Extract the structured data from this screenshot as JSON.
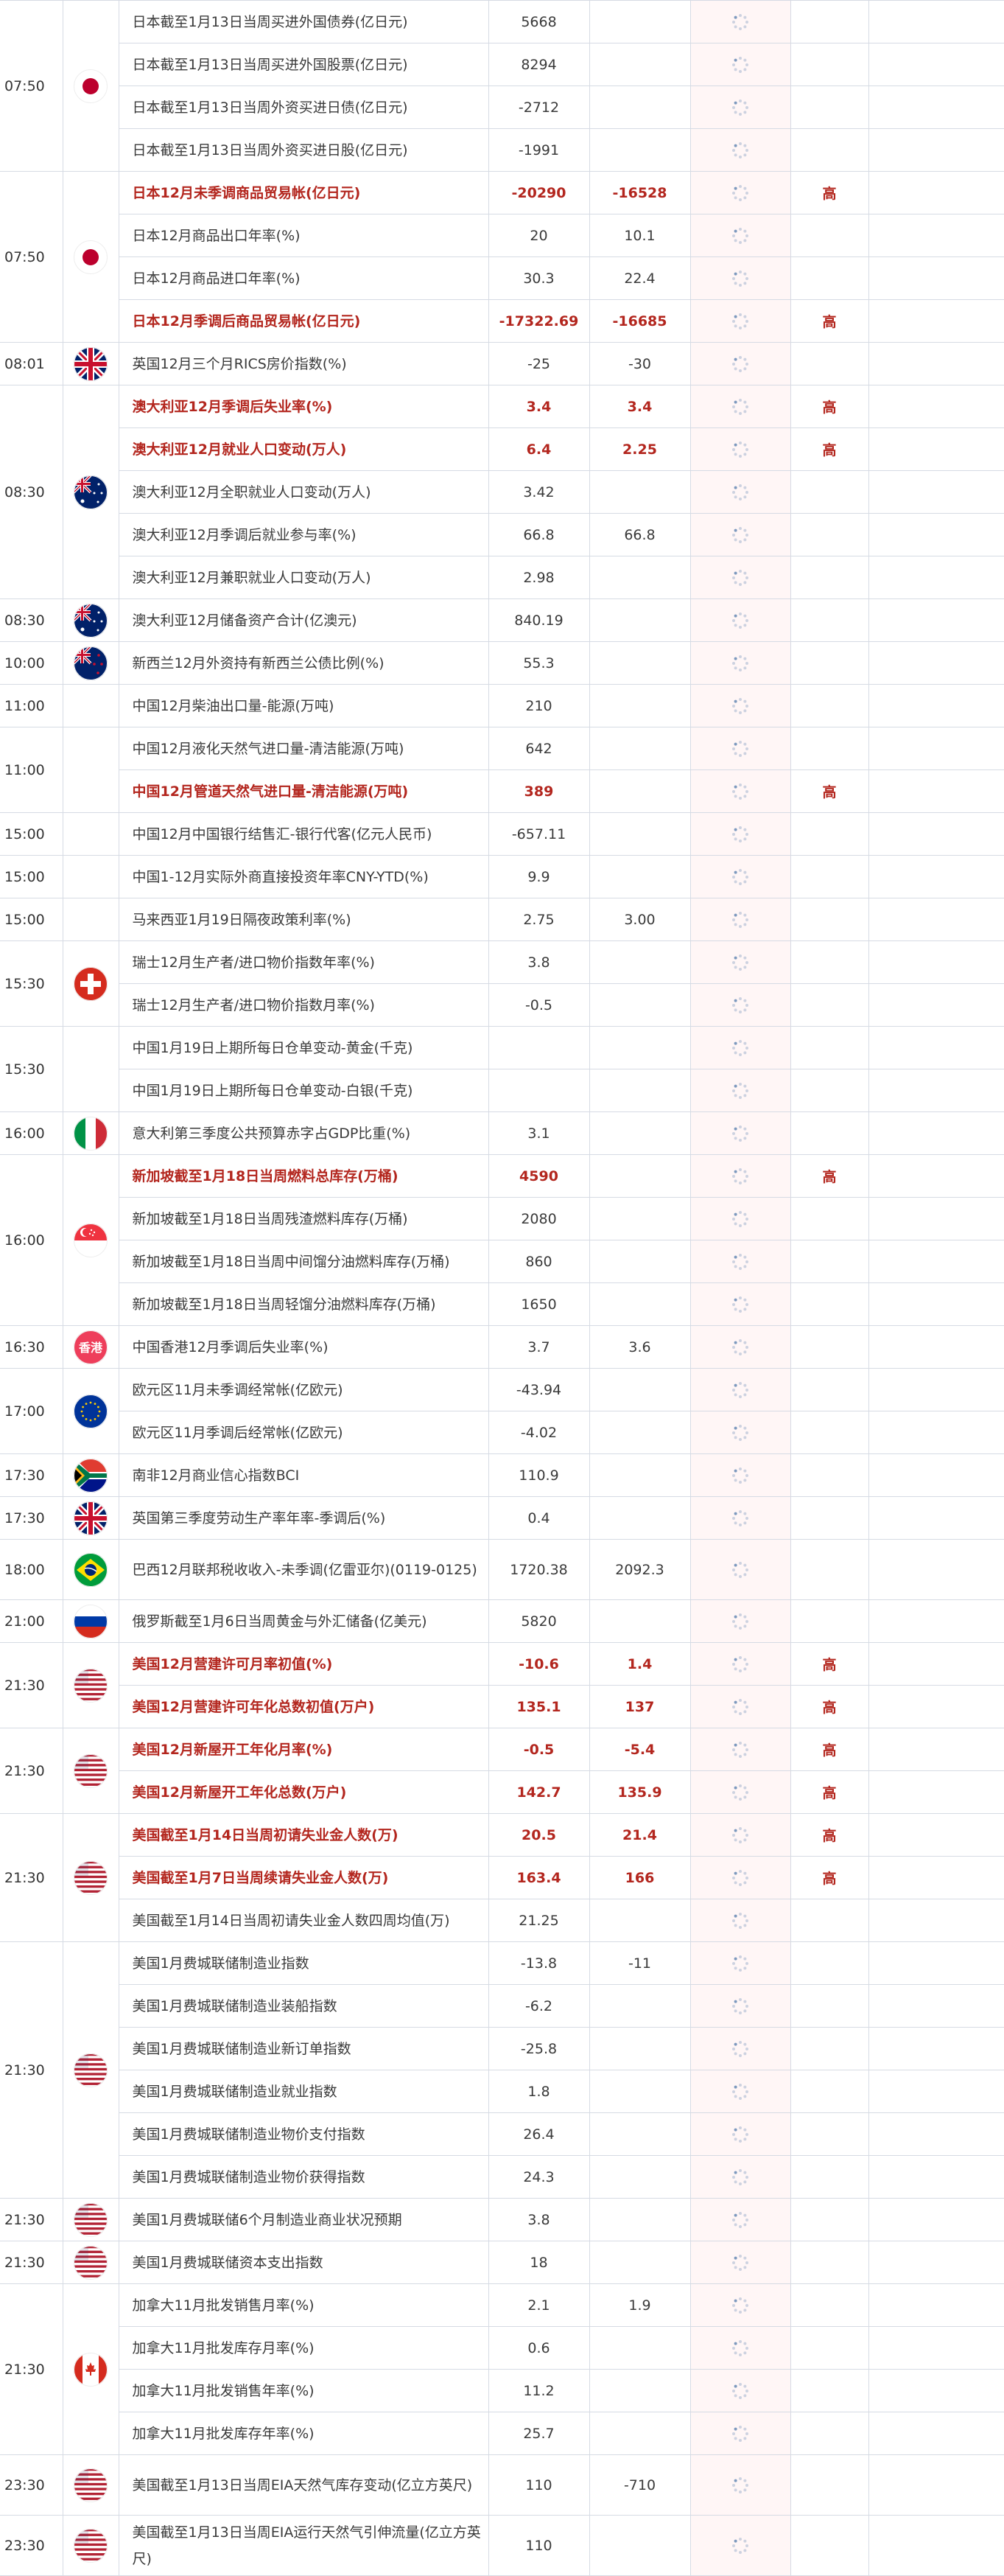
{
  "accent_color": "#b3261e",
  "loading_icon": "spinner-icon",
  "groups": [
    {
      "time": "07:50",
      "flag": "jp",
      "rows": [
        {
          "event": "日本截至1月13日当周买进外国债券(亿日元)",
          "actual": "5668",
          "previous": "",
          "importance": ""
        },
        {
          "event": "日本截至1月13日当周买进外国股票(亿日元)",
          "actual": "8294",
          "previous": "",
          "importance": ""
        },
        {
          "event": "日本截至1月13日当周外资买进日债(亿日元)",
          "actual": "-2712",
          "previous": "",
          "importance": ""
        },
        {
          "event": "日本截至1月13日当周外资买进日股(亿日元)",
          "actual": "-1991",
          "previous": "",
          "importance": ""
        }
      ]
    },
    {
      "time": "07:50",
      "flag": "jp",
      "rows": [
        {
          "event": "日本12月未季调商品贸易帐(亿日元)",
          "actual": "-20290",
          "previous": "-16528",
          "importance": "高"
        },
        {
          "event": "日本12月商品出口年率(%)",
          "actual": "20",
          "previous": "10.1",
          "importance": ""
        },
        {
          "event": "日本12月商品进口年率(%)",
          "actual": "30.3",
          "previous": "22.4",
          "importance": ""
        },
        {
          "event": "日本12月季调后商品贸易帐(亿日元)",
          "actual": "-17322.69",
          "previous": "-16685",
          "importance": "高"
        }
      ]
    },
    {
      "time": "08:01",
      "flag": "uk",
      "rows": [
        {
          "event": "英国12月三个月RICS房价指数(%)",
          "actual": "-25",
          "previous": "-30",
          "importance": ""
        }
      ]
    },
    {
      "time": "08:30",
      "flag": "au",
      "rows": [
        {
          "event": "澳大利亚12月季调后失业率(%)",
          "actual": "3.4",
          "previous": "3.4",
          "importance": "高"
        },
        {
          "event": "澳大利亚12月就业人口变动(万人)",
          "actual": "6.4",
          "previous": "2.25",
          "importance": "高"
        },
        {
          "event": "澳大利亚12月全职就业人口变动(万人)",
          "actual": "3.42",
          "previous": "",
          "importance": ""
        },
        {
          "event": "澳大利亚12月季调后就业参与率(%)",
          "actual": "66.8",
          "previous": "66.8",
          "importance": ""
        },
        {
          "event": "澳大利亚12月兼职就业人口变动(万人)",
          "actual": "2.98",
          "previous": "",
          "importance": ""
        }
      ]
    },
    {
      "time": "08:30",
      "flag": "au",
      "rows": [
        {
          "event": "澳大利亚12月储备资产合计(亿澳元)",
          "actual": "840.19",
          "previous": "",
          "importance": ""
        }
      ]
    },
    {
      "time": "10:00",
      "flag": "nz",
      "rows": [
        {
          "event": "新西兰12月外资持有新西兰公债比例(%)",
          "actual": "55.3",
          "previous": "",
          "importance": ""
        }
      ]
    },
    {
      "time": "11:00",
      "flag": "",
      "rows": [
        {
          "event": "中国12月柴油出口量-能源(万吨)",
          "actual": "210",
          "previous": "",
          "importance": ""
        }
      ]
    },
    {
      "time": "11:00",
      "flag": "",
      "rows": [
        {
          "event": "中国12月液化天然气进口量-清洁能源(万吨)",
          "actual": "642",
          "previous": "",
          "importance": ""
        },
        {
          "event": "中国12月管道天然气进口量-清洁能源(万吨)",
          "actual": "389",
          "previous": "",
          "importance": "高"
        }
      ]
    },
    {
      "time": "15:00",
      "flag": "",
      "rows": [
        {
          "event": "中国12月中国银行结售汇-银行代客(亿元人民币)",
          "actual": "-657.11",
          "previous": "",
          "importance": ""
        }
      ]
    },
    {
      "time": "15:00",
      "flag": "",
      "rows": [
        {
          "event": "中国1-12月实际外商直接投资年率CNY-YTD(%)",
          "actual": "9.9",
          "previous": "",
          "importance": ""
        }
      ]
    },
    {
      "time": "15:00",
      "flag": "",
      "rows": [
        {
          "event": "马来西亚1月19日隔夜政策利率(%)",
          "actual": "2.75",
          "previous": "3.00",
          "importance": ""
        }
      ]
    },
    {
      "time": "15:30",
      "flag": "ch",
      "rows": [
        {
          "event": "瑞士12月生产者/进口物价指数年率(%)",
          "actual": "3.8",
          "previous": "",
          "importance": ""
        },
        {
          "event": "瑞士12月生产者/进口物价指数月率(%)",
          "actual": "-0.5",
          "previous": "",
          "importance": ""
        }
      ]
    },
    {
      "time": "15:30",
      "flag": "",
      "rows": [
        {
          "event": "中国1月19日上期所每日仓单变动-黄金(千克)",
          "actual": "",
          "previous": "",
          "importance": ""
        },
        {
          "event": "中国1月19日上期所每日仓单变动-白银(千克)",
          "actual": "",
          "previous": "",
          "importance": ""
        }
      ]
    },
    {
      "time": "16:00",
      "flag": "it",
      "rows": [
        {
          "event": "意大利第三季度公共预算赤字占GDP比重(%)",
          "actual": "3.1",
          "previous": "",
          "importance": ""
        }
      ]
    },
    {
      "time": "16:00",
      "flag": "sg",
      "rows": [
        {
          "event": "新加坡截至1月18日当周燃料总库存(万桶)",
          "actual": "4590",
          "previous": "",
          "importance": "高"
        },
        {
          "event": "新加坡截至1月18日当周残渣燃料库存(万桶)",
          "actual": "2080",
          "previous": "",
          "importance": ""
        },
        {
          "event": "新加坡截至1月18日当周中间馏分油燃料库存(万桶)",
          "actual": "860",
          "previous": "",
          "importance": ""
        },
        {
          "event": "新加坡截至1月18日当周轻馏分油燃料库存(万桶)",
          "actual": "1650",
          "previous": "",
          "importance": ""
        }
      ]
    },
    {
      "time": "16:30",
      "flag": "hk",
      "flag_text": "香港",
      "rows": [
        {
          "event": "中国香港12月季调后失业率(%)",
          "actual": "3.7",
          "previous": "3.6",
          "importance": ""
        }
      ]
    },
    {
      "time": "17:00",
      "flag": "eu",
      "rows": [
        {
          "event": "欧元区11月未季调经常帐(亿欧元)",
          "actual": "-43.94",
          "previous": "",
          "importance": ""
        },
        {
          "event": "欧元区11月季调后经常帐(亿欧元)",
          "actual": "-4.02",
          "previous": "",
          "importance": ""
        }
      ]
    },
    {
      "time": "17:30",
      "flag": "za",
      "rows": [
        {
          "event": "南非12月商业信心指数BCI",
          "actual": "110.9",
          "previous": "",
          "importance": ""
        }
      ]
    },
    {
      "time": "17:30",
      "flag": "uk",
      "rows": [
        {
          "event": "英国第三季度劳动生产率年率-季调后(%)",
          "actual": "0.4",
          "previous": "",
          "importance": ""
        }
      ]
    },
    {
      "time": "18:00",
      "flag": "br",
      "rows": [
        {
          "event": "巴西12月联邦税收收入-未季调(亿雷亚尔)(0119-0125)",
          "actual": "1720.38",
          "previous": "2092.3",
          "importance": "",
          "two": true
        }
      ]
    },
    {
      "time": "21:00",
      "flag": "ru",
      "rows": [
        {
          "event": "俄罗斯截至1月6日当周黄金与外汇储备(亿美元)",
          "actual": "5820",
          "previous": "",
          "importance": ""
        }
      ]
    },
    {
      "time": "21:30",
      "flag": "us",
      "rows": [
        {
          "event": "美国12月营建许可月率初值(%)",
          "actual": "-10.6",
          "previous": "1.4",
          "importance": "高"
        },
        {
          "event": "美国12月营建许可年化总数初值(万户)",
          "actual": "135.1",
          "previous": "137",
          "importance": "高"
        }
      ]
    },
    {
      "time": "21:30",
      "flag": "us",
      "rows": [
        {
          "event": "美国12月新屋开工年化月率(%)",
          "actual": "-0.5",
          "previous": "-5.4",
          "importance": "高"
        },
        {
          "event": "美国12月新屋开工年化总数(万户)",
          "actual": "142.7",
          "previous": "135.9",
          "importance": "高"
        }
      ]
    },
    {
      "time": "21:30",
      "flag": "us",
      "rows": [
        {
          "event": "美国截至1月14日当周初请失业金人数(万)",
          "actual": "20.5",
          "previous": "21.4",
          "importance": "高"
        },
        {
          "event": "美国截至1月7日当周续请失业金人数(万)",
          "actual": "163.4",
          "previous": "166",
          "importance": "高"
        },
        {
          "event": "美国截至1月14日当周初请失业金人数四周均值(万)",
          "actual": "21.25",
          "previous": "",
          "importance": ""
        }
      ]
    },
    {
      "time": "21:30",
      "flag": "us",
      "rows": [
        {
          "event": "美国1月费城联储制造业指数",
          "actual": "-13.8",
          "previous": "-11",
          "importance": ""
        },
        {
          "event": "美国1月费城联储制造业装船指数",
          "actual": "-6.2",
          "previous": "",
          "importance": ""
        },
        {
          "event": "美国1月费城联储制造业新订单指数",
          "actual": "-25.8",
          "previous": "",
          "importance": ""
        },
        {
          "event": "美国1月费城联储制造业就业指数",
          "actual": "1.8",
          "previous": "",
          "importance": ""
        },
        {
          "event": "美国1月费城联储制造业物价支付指数",
          "actual": "26.4",
          "previous": "",
          "importance": ""
        },
        {
          "event": "美国1月费城联储制造业物价获得指数",
          "actual": "24.3",
          "previous": "",
          "importance": ""
        }
      ]
    },
    {
      "time": "21:30",
      "flag": "us",
      "rows": [
        {
          "event": "美国1月费城联储6个月制造业商业状况预期",
          "actual": "3.8",
          "previous": "",
          "importance": ""
        }
      ]
    },
    {
      "time": "21:30",
      "flag": "us",
      "rows": [
        {
          "event": "美国1月费城联储资本支出指数",
          "actual": "18",
          "previous": "",
          "importance": ""
        }
      ]
    },
    {
      "time": "21:30",
      "flag": "ca",
      "rows": [
        {
          "event": "加拿大11月批发销售月率(%)",
          "actual": "2.1",
          "previous": "1.9",
          "importance": ""
        },
        {
          "event": "加拿大11月批发库存月率(%)",
          "actual": "0.6",
          "previous": "",
          "importance": ""
        },
        {
          "event": "加拿大11月批发销售年率(%)",
          "actual": "11.2",
          "previous": "",
          "importance": ""
        },
        {
          "event": "加拿大11月批发库存年率(%)",
          "actual": "25.7",
          "previous": "",
          "importance": ""
        }
      ]
    },
    {
      "time": "23:30",
      "flag": "us",
      "rows": [
        {
          "event": "美国截至1月13日当周EIA天然气库存变动(亿立方英尺)",
          "actual": "110",
          "previous": "-710",
          "importance": "",
          "two": true
        }
      ]
    },
    {
      "time": "23:30",
      "flag": "us",
      "rows": [
        {
          "event": "美国截至1月13日当周EIA运行天然气引伸流量(亿立方英尺)",
          "actual": "110",
          "previous": "",
          "importance": "",
          "two": true
        }
      ]
    }
  ]
}
